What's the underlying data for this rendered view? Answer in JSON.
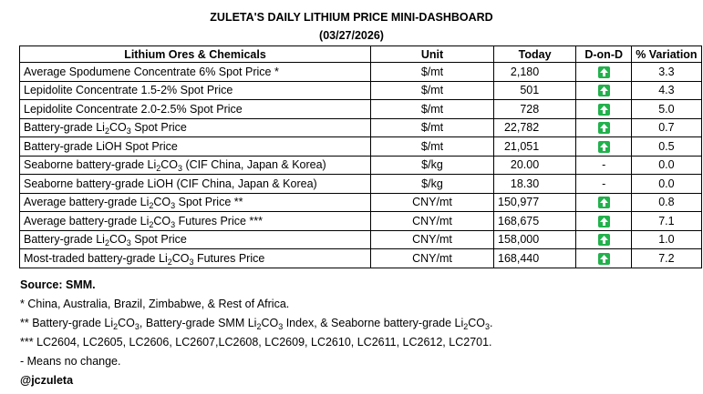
{
  "title": "ZULETA'S DAILY LITHIUM PRICE MINI-DASHBOARD",
  "date": "(03/27/2026)",
  "table": {
    "headers": [
      "Lithium Ores & Chemicals",
      "Unit",
      "Today",
      "D-on-D",
      "% Variation"
    ],
    "rows": [
      {
        "name": [
          "Average Spodumene Concentrate 6% Spot Price *"
        ],
        "unit": "$/mt",
        "today": "2,180",
        "don": "up",
        "pct": "3.3"
      },
      {
        "name": [
          "Lepidolite Concentrate 1.5-2% Spot Price"
        ],
        "unit": "$/mt",
        "today": "501",
        "don": "up",
        "pct": "4.3"
      },
      {
        "name": [
          "Lepidolite Concentrate 2.0-2.5% Spot Price"
        ],
        "unit": "$/mt",
        "today": "728",
        "don": "up",
        "pct": "5.0"
      },
      {
        "name": [
          "Battery-grade Li",
          "2",
          "CO",
          "3",
          " Spot Price"
        ],
        "unit": "$/mt",
        "today": "22,782",
        "don": "up",
        "pct": "0.7"
      },
      {
        "name": [
          "Battery-grade LiOH Spot Price"
        ],
        "unit": "$/mt",
        "today": "21,051",
        "don": "up",
        "pct": "0.5"
      },
      {
        "name": [
          "Seaborne battery-grade Li",
          "2",
          "CO",
          "3",
          " (CIF China, Japan & Korea)"
        ],
        "unit": "$/kg",
        "today": "20.00",
        "don": "-",
        "pct": "0.0"
      },
      {
        "name": [
          "Seaborne battery-grade LiOH (CIF China, Japan & Korea)"
        ],
        "unit": "$/kg",
        "today": "18.30",
        "don": "-",
        "pct": "0.0"
      },
      {
        "name": [
          "Average battery-grade Li",
          "2",
          "CO",
          "3",
          " Spot Price **"
        ],
        "unit": "CNY/mt",
        "today": "150,977",
        "don": "up",
        "pct": "0.8"
      },
      {
        "name": [
          "Average battery-grade Li",
          "2",
          "CO",
          "3",
          " Futures Price ***"
        ],
        "unit": "CNY/mt",
        "today": "168,675",
        "don": "up",
        "pct": "7.1"
      },
      {
        "name": [
          "Battery-grade Li",
          "2",
          "CO",
          "3",
          " Spot Price"
        ],
        "unit": "CNY/mt",
        "today": "158,000",
        "don": "up",
        "pct": "1.0"
      },
      {
        "name": [
          "Most-traded battery-grade Li",
          "2",
          "CO",
          "3",
          " Futures Price"
        ],
        "unit": "CNY/mt",
        "today": "168,440",
        "don": "up",
        "pct": "7.2"
      }
    ]
  },
  "notes": {
    "source": "Source: SMM.",
    "n1": "* China, Australia, Brazil, Zimbabwe, & Rest of Africa.",
    "n2": [
      "** Battery-grade Li",
      "2",
      "CO",
      "3",
      ", Battery-grade SMM Li",
      "2",
      "CO",
      "3",
      " Index, & Seaborne battery-grade Li",
      "2",
      "CO",
      "3",
      "."
    ],
    "n3": "*** LC2604, LC2605, LC2606, LC2607,LC2608, LC2609, LC2610, LC2611, LC2612, LC2701.",
    "n4": "- Means no change.",
    "handle": "@jczuleta"
  },
  "colors": {
    "up_arrow_bg": "#22b14c",
    "up_arrow_fg": "#ffffff"
  },
  "icons": {
    "up": "up-arrow-icon"
  }
}
